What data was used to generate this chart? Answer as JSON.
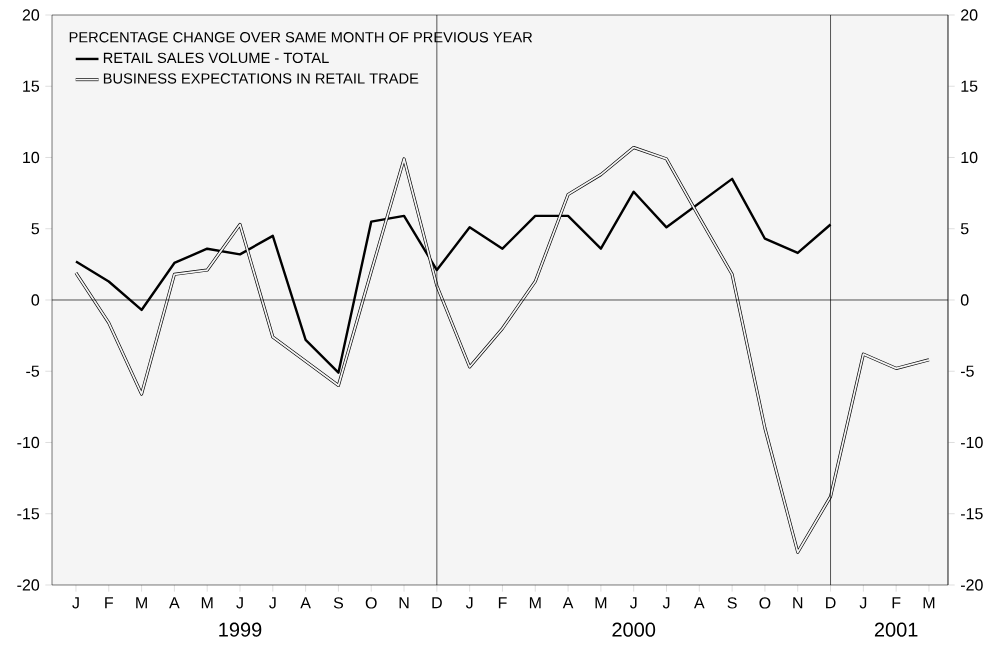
{
  "chart_data": {
    "type": "line",
    "legend_title": "PERCENTAGE CHANGE OVER SAME MONTH OF PREVIOUS YEAR",
    "categories": [
      "J",
      "F",
      "M",
      "A",
      "M",
      "J",
      "J",
      "A",
      "S",
      "O",
      "N",
      "D",
      "J",
      "F",
      "M",
      "A",
      "M",
      "J",
      "J",
      "A",
      "S",
      "O",
      "N",
      "D",
      "J",
      "F",
      "M"
    ],
    "series": [
      {
        "name": "RETAIL SALES VOLUME - TOTAL",
        "color": "#000000",
        "values": [
          2.7,
          1.3,
          -0.7,
          2.6,
          3.6,
          3.2,
          4.5,
          -2.8,
          -5.1,
          5.5,
          5.9,
          2.1,
          5.1,
          3.6,
          5.9,
          5.9,
          3.6,
          7.6,
          5.1,
          6.8,
          8.5,
          4.3,
          3.3,
          5.3,
          null,
          null,
          null
        ]
      },
      {
        "name": "BUSINESS EXPECTATIONS IN RETAIL TRADE",
        "color": "#000000",
        "values": [
          1.9,
          -1.6,
          -6.6,
          1.8,
          2.1,
          5.3,
          -2.6,
          -4.3,
          -6.0,
          2.0,
          9.9,
          1.0,
          -4.7,
          -2.0,
          1.3,
          7.4,
          8.8,
          10.7,
          9.9,
          5.8,
          1.8,
          -9.0,
          -17.7,
          -13.8,
          -3.8,
          -4.8,
          -4.2
        ]
      }
    ],
    "ylim": [
      -20,
      20
    ],
    "yticks": [
      -20,
      -15,
      -10,
      -5,
      0,
      5,
      10,
      15,
      20
    ],
    "y2lim": [
      -20,
      20
    ],
    "y2ticks": [
      -20,
      -15,
      -10,
      -5,
      0,
      5,
      10,
      15,
      20
    ],
    "ref_lines": [
      {
        "axis": "y",
        "value": 0
      }
    ],
    "annotations": [
      "1999",
      "2000",
      "2001"
    ],
    "legend": "top left"
  }
}
